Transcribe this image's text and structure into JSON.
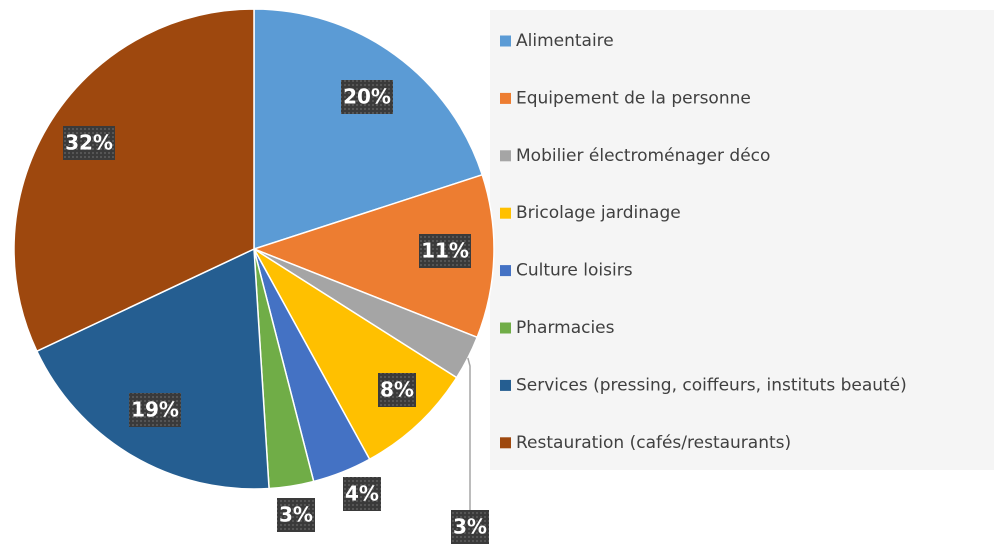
{
  "chart_data": {
    "type": "pie",
    "categories": [
      "Alimentaire",
      "Equipement de la personne",
      "Mobilier électroménager déco",
      "Bricolage jardinage",
      "Culture loisirs",
      "Pharmacies",
      "Services (pressing, coiffeurs, instituts beauté)",
      "Restauration (cafés/restaurants)"
    ],
    "values": [
      20,
      11,
      3,
      8,
      4,
      3,
      19,
      32
    ],
    "value_labels": [
      "20%",
      "11%",
      "3%",
      "8%",
      "4%",
      "3%",
      "19%",
      "32%"
    ],
    "colors": [
      "#5b9bd5",
      "#ed7d31",
      "#a5a5a5",
      "#ffc000",
      "#4472c4",
      "#70ad47",
      "#255e91",
      "#9e480e"
    ],
    "legend": "right"
  }
}
